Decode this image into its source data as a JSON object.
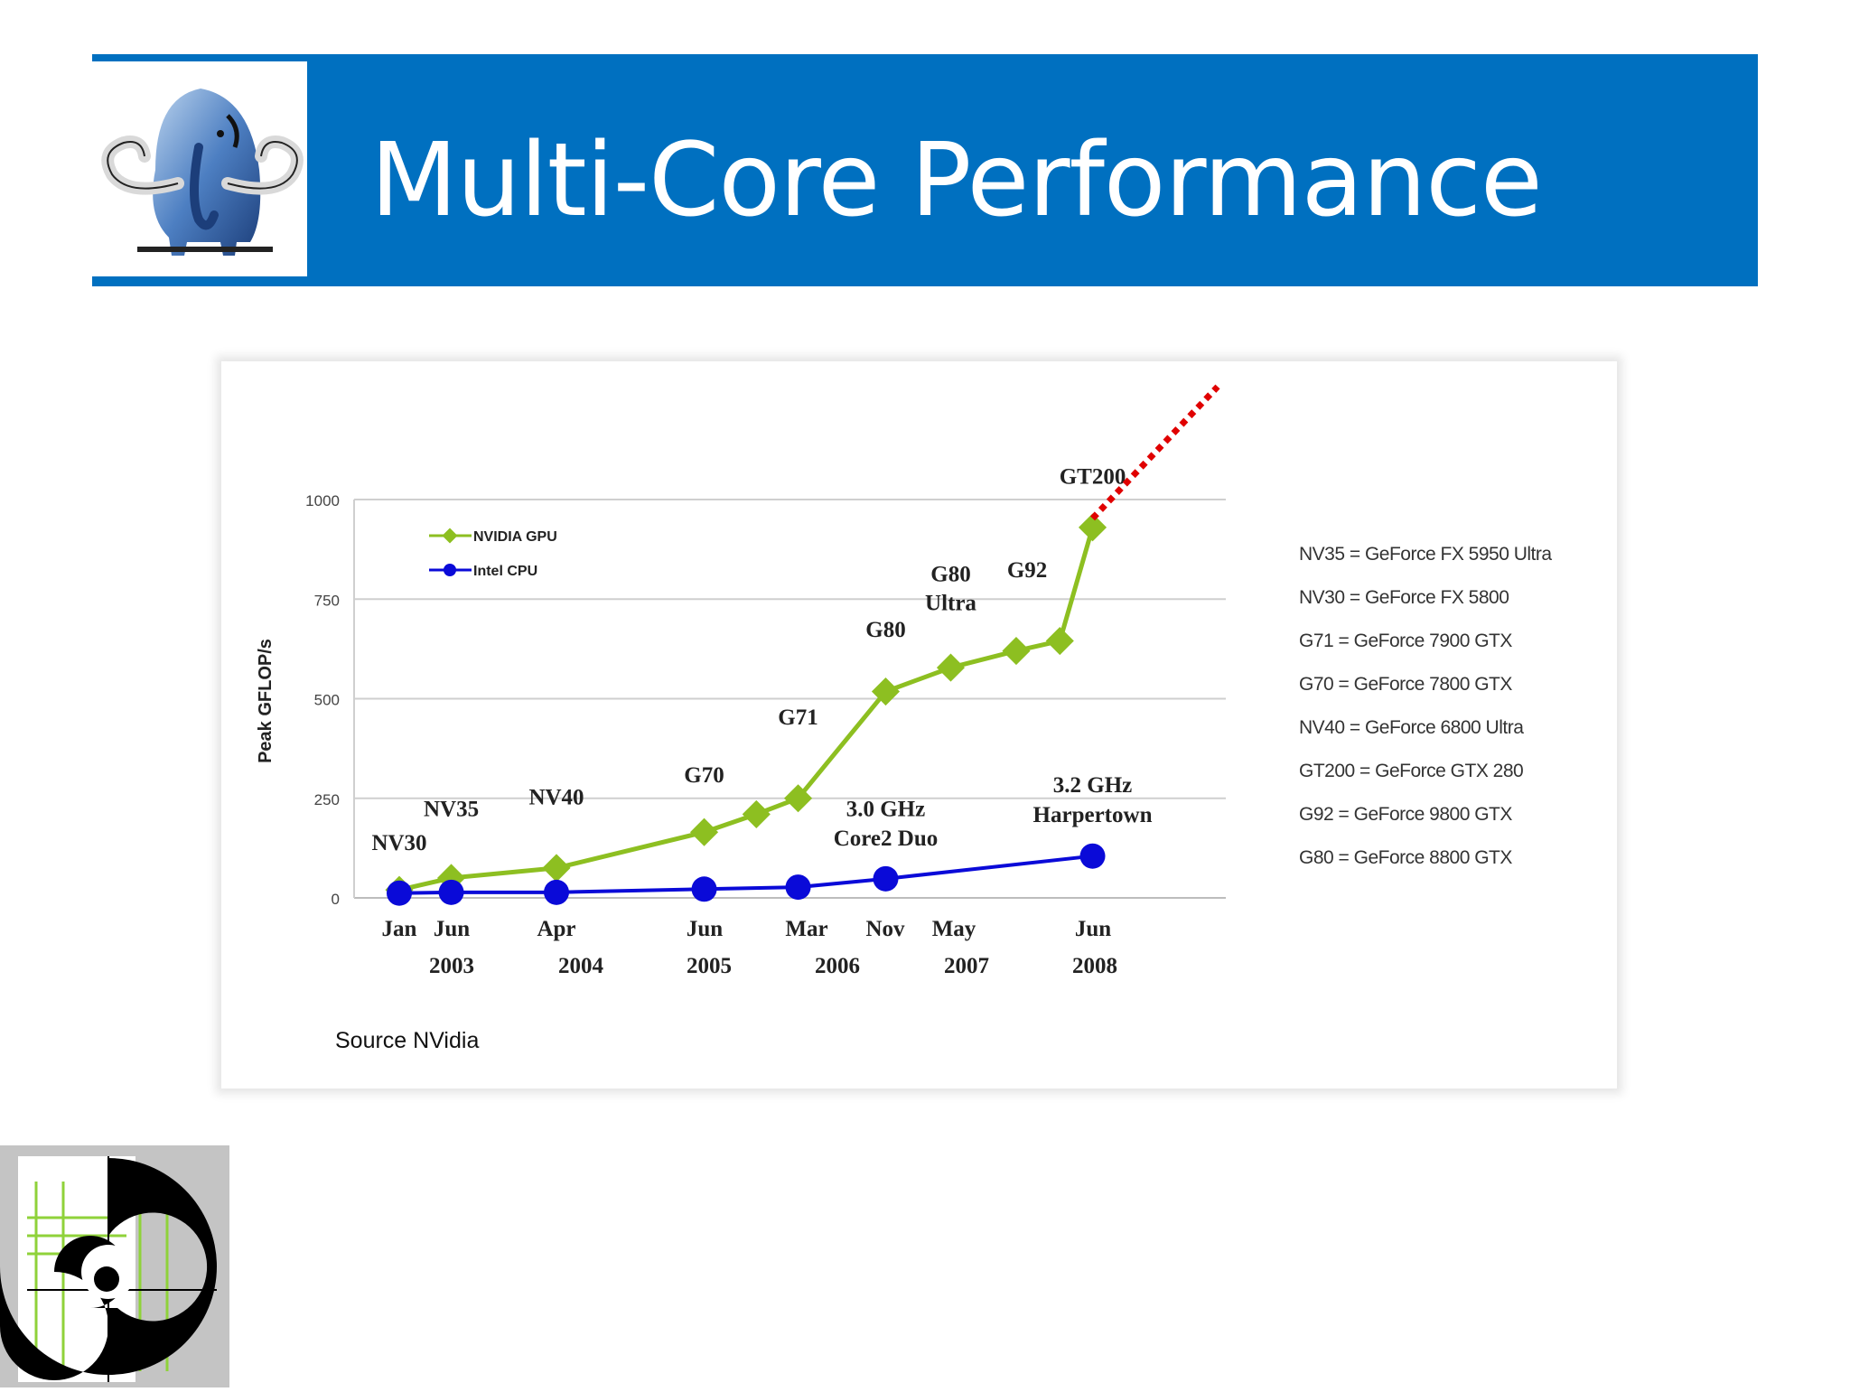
{
  "slide": {
    "title": "Multi-Core Performance",
    "source_note": "Source NVidia"
  },
  "logos": {
    "top_left": "mammoth-logo",
    "bottom_left": "spiral-logo"
  },
  "colors": {
    "header": "#0070c0",
    "gpu_series": "#8dbf21",
    "cpu_series": "#0a0ad8",
    "trend_line": "#e00000"
  },
  "chart_data": {
    "type": "line",
    "ylabel": "Peak GFLOP/s",
    "ylim": [
      0,
      1000
    ],
    "yticks": [
      "1000",
      "750",
      "500",
      "250",
      "0"
    ],
    "grid": true,
    "legend_position": "top-left",
    "x_month_labels": [
      "Jan",
      "Jun",
      "Apr",
      "Jun",
      "Mar",
      "Nov",
      "May",
      "Jun"
    ],
    "x_year_labels": [
      "2003",
      "2004",
      "2005",
      "2006",
      "2007",
      "2008"
    ],
    "series": [
      {
        "name": "NVIDIA GPU",
        "color": "#8dbf21",
        "points": [
          {
            "date": "2003-01",
            "value": 20
          },
          {
            "date": "2003-06",
            "value": 50
          },
          {
            "date": "2004-04",
            "value": 75
          },
          {
            "date": "2005-06",
            "value": 165
          },
          {
            "date": "2005-11",
            "value": 210
          },
          {
            "date": "2006-03",
            "value": 250
          },
          {
            "date": "2006-11",
            "value": 518
          },
          {
            "date": "2007-05",
            "value": 578
          },
          {
            "date": "2007-11",
            "value": 620
          },
          {
            "date": "2008-03",
            "value": 645
          },
          {
            "date": "2008-06",
            "value": 930
          }
        ]
      },
      {
        "name": "Intel CPU",
        "color": "#0a0ad8",
        "points": [
          {
            "date": "2003-01",
            "value": 12
          },
          {
            "date": "2003-06",
            "value": 14
          },
          {
            "date": "2004-04",
            "value": 14
          },
          {
            "date": "2005-06",
            "value": 22
          },
          {
            "date": "2006-03",
            "value": 27
          },
          {
            "date": "2006-11",
            "value": 48
          },
          {
            "date": "2008-06",
            "value": 105
          }
        ]
      }
    ],
    "annotations": [
      {
        "text": "NV30",
        "date": "2003-01",
        "value": 120
      },
      {
        "text": "NV35",
        "date": "2003-06",
        "value": 205
      },
      {
        "text": "NV40",
        "date": "2004-04",
        "value": 235
      },
      {
        "text": "G70",
        "date": "2005-06",
        "value": 290
      },
      {
        "text": "G71",
        "date": "2006-03",
        "value": 435
      },
      {
        "text": "G80",
        "date": "2006-11",
        "value": 655
      },
      {
        "text": "G80",
        "date": "2007-05",
        "value": 795
      },
      {
        "text": "Ultra",
        "date": "2007-05",
        "value": 722
      },
      {
        "text": "G92",
        "date": "2007-12",
        "value": 805
      },
      {
        "text": "GT200",
        "date": "2008-06",
        "value": 1040
      },
      {
        "text": "3.0 GHz",
        "date": "2006-11",
        "value": 205
      },
      {
        "text": "Core2 Duo",
        "date": "2006-11",
        "value": 132
      },
      {
        "text": "3.2 GHz",
        "date": "2008-06",
        "value": 265
      },
      {
        "text": "Harpertown",
        "date": "2008-06",
        "value": 190
      }
    ],
    "legend_key": [
      "NV35 = GeForce FX 5950 Ultra",
      "NV30 = GeForce FX 5800",
      "G71 = GeForce 7900 GTX",
      "G70 = GeForce 7800 GTX",
      "NV40 = GeForce 6800 Ultra",
      "GT200 = GeForce GTX 280",
      "G92 = GeForce 9800 GTX",
      "G80 = GeForce 8800 GTX"
    ]
  }
}
